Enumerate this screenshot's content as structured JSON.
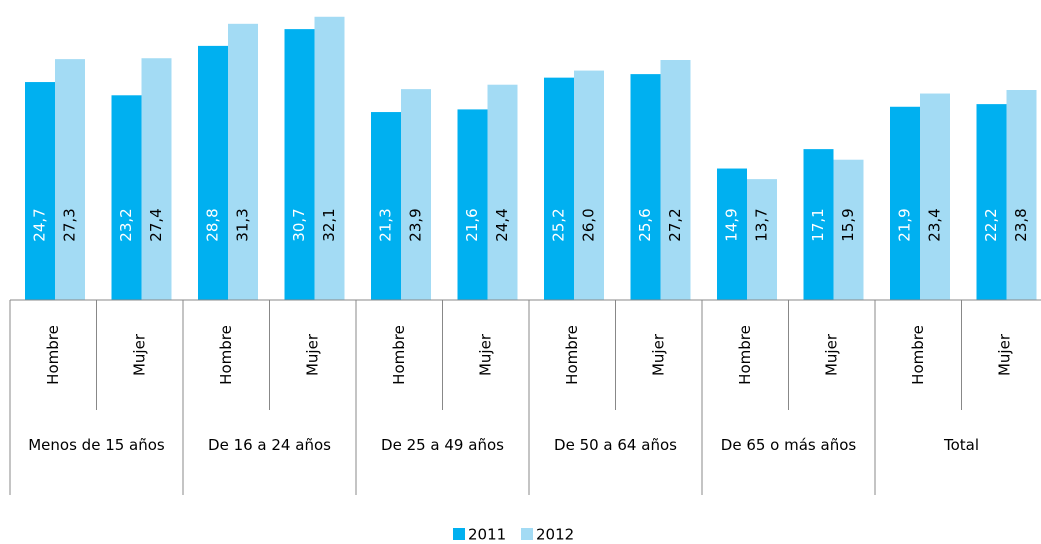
{
  "chart_data": {
    "type": "bar",
    "categories": [
      "Hombre",
      "Mujer",
      "Hombre",
      "Mujer",
      "Hombre",
      "Mujer",
      "Hombre",
      "Mujer",
      "Hombre",
      "Mujer",
      "Hombre",
      "Mujer"
    ],
    "category_groups": [
      "Menos de 15 años",
      "De 16 a  24 años",
      "De 25 a 49 años",
      "De 50 a 64 años",
      "De 65 o más años",
      "Total"
    ],
    "series": [
      {
        "name": "2011",
        "color": "#00b0f0",
        "values": [
          24.7,
          23.2,
          28.8,
          30.7,
          21.3,
          21.6,
          25.2,
          25.6,
          14.9,
          17.1,
          21.9,
          22.2
        ],
        "value_labels": [
          "24,7",
          "23,2",
          "28,8",
          "30,7",
          "21,3",
          "21,6",
          "25,2",
          "25,6",
          "14,9",
          "17,1",
          "21,9",
          "22,2"
        ]
      },
      {
        "name": "2012",
        "color": "#a3dbf4",
        "values": [
          27.3,
          27.4,
          31.3,
          32.1,
          23.9,
          24.4,
          26.0,
          27.2,
          13.7,
          15.9,
          23.4,
          23.8
        ],
        "value_labels": [
          "27,3",
          "27,4",
          "31,3",
          "32,1",
          "23,9",
          "24,4",
          "26,0",
          "27,2",
          "13,7",
          "15,9",
          "23,4",
          "23,8"
        ]
      }
    ],
    "ylim": [
      0,
      34
    ],
    "legend": "bottom"
  }
}
